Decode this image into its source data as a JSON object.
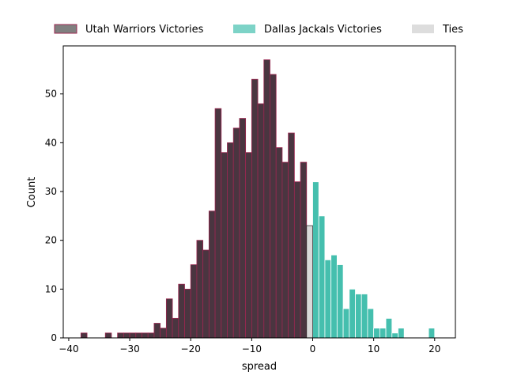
{
  "chart_data": {
    "type": "bar",
    "xlabel": "spread",
    "ylabel": "Count",
    "xlim": [
      -40.9,
      23.4
    ],
    "ylim": [
      0,
      59.85
    ],
    "bin_width": 1,
    "xticks": [
      -40,
      -30,
      -20,
      -10,
      0,
      10,
      20
    ],
    "xtick_labels": [
      "−40",
      "−30",
      "−20",
      "−10",
      "0",
      "10",
      "20"
    ],
    "yticks": [
      0,
      10,
      20,
      30,
      40,
      50
    ],
    "ytick_labels": [
      "0",
      "10",
      "20",
      "30",
      "40",
      "50"
    ],
    "legend_position": "top",
    "series": [
      {
        "name": "Utah Warriors Victories",
        "color": "#4a3540",
        "edge_color": "#9b2750",
        "legend_fill": "#808080",
        "bins": [
          {
            "x": -38,
            "count": 1
          },
          {
            "x": -34,
            "count": 1
          },
          {
            "x": -32,
            "count": 1
          },
          {
            "x": -31,
            "count": 1
          },
          {
            "x": -30,
            "count": 1
          },
          {
            "x": -29,
            "count": 1
          },
          {
            "x": -28,
            "count": 1
          },
          {
            "x": -27,
            "count": 1
          },
          {
            "x": -26,
            "count": 3
          },
          {
            "x": -25,
            "count": 2
          },
          {
            "x": -24,
            "count": 8
          },
          {
            "x": -23,
            "count": 4
          },
          {
            "x": -22,
            "count": 11
          },
          {
            "x": -21,
            "count": 10
          },
          {
            "x": -20,
            "count": 15
          },
          {
            "x": -19,
            "count": 20
          },
          {
            "x": -18,
            "count": 18
          },
          {
            "x": -17,
            "count": 26
          },
          {
            "x": -16,
            "count": 47
          },
          {
            "x": -15,
            "count": 38
          },
          {
            "x": -14,
            "count": 40
          },
          {
            "x": -13,
            "count": 43
          },
          {
            "x": -12,
            "count": 45
          },
          {
            "x": -11,
            "count": 38
          },
          {
            "x": -10,
            "count": 53
          },
          {
            "x": -9,
            "count": 48
          },
          {
            "x": -8,
            "count": 57
          },
          {
            "x": -7,
            "count": 54
          },
          {
            "x": -6,
            "count": 39
          },
          {
            "x": -5,
            "count": 36
          },
          {
            "x": -4,
            "count": 42
          },
          {
            "x": -3,
            "count": 32
          },
          {
            "x": -2,
            "count": 36
          }
        ]
      },
      {
        "name": "Dallas Jackals Victories",
        "color": "#45bfae",
        "edge_color": "#ffffff",
        "legend_fill": "#7dd3c7",
        "bins": [
          {
            "x": 0,
            "count": 32
          },
          {
            "x": 1,
            "count": 25
          },
          {
            "x": 2,
            "count": 16
          },
          {
            "x": 3,
            "count": 17
          },
          {
            "x": 4,
            "count": 15
          },
          {
            "x": 5,
            "count": 6
          },
          {
            "x": 6,
            "count": 10
          },
          {
            "x": 7,
            "count": 9
          },
          {
            "x": 8,
            "count": 9
          },
          {
            "x": 9,
            "count": 6
          },
          {
            "x": 10,
            "count": 2
          },
          {
            "x": 11,
            "count": 2
          },
          {
            "x": 12,
            "count": 4
          },
          {
            "x": 13,
            "count": 1
          },
          {
            "x": 14,
            "count": 2
          },
          {
            "x": 19,
            "count": 2
          }
        ]
      },
      {
        "name": "Ties",
        "color": "#d9d9d9",
        "edge_color": "#333333",
        "legend_fill": "#dddddd",
        "bins": [
          {
            "x": -1,
            "count": 23
          }
        ]
      }
    ]
  }
}
